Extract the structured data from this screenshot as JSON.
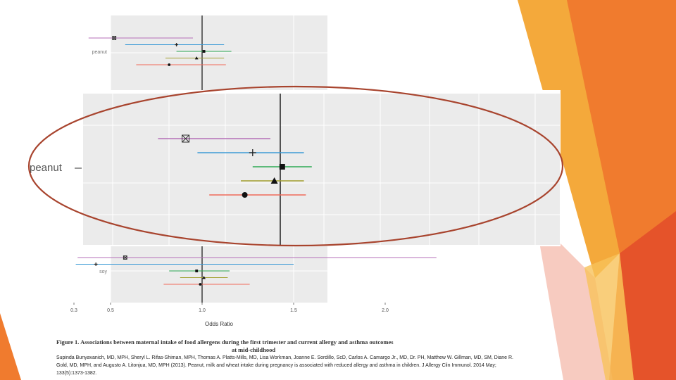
{
  "colors": {
    "accent_orange": "#F07B2E",
    "accent_gold": "#F4A93B",
    "accent_red": "#E5532A",
    "accent_salmon": "#F0A08C",
    "callout_ellipse": "#A8442E",
    "panel_bg": "#EBEBEB",
    "ref_line": "#111111"
  },
  "chart_data": [
    {
      "type": "scatter",
      "name": "full-forest-plot",
      "title": "Figure 1. Associations between maternal intake of food allergens during the first trimester and current allergy and asthma outcomes",
      "title_line2": "at mid-childhood",
      "xlabel": "Odds Ratio",
      "xlim": [
        0.3,
        2.3
      ],
      "x_ticks": [
        0.3,
        0.5,
        1.0,
        1.5,
        2.0
      ],
      "x_tick_labels": [
        "0.3",
        "0.5",
        "1.0",
        "1.5",
        "2.0"
      ],
      "reference_line": 1.0,
      "groups": [
        {
          "label": "peanut",
          "series": [
            {
              "color": "#B56FB8",
              "marker": "boxed-x",
              "estimate": 0.52,
              "ci": [
                0.38,
                0.95
              ]
            },
            {
              "color": "#3D9BD6",
              "marker": "plus",
              "estimate": 0.86,
              "ci": [
                0.58,
                1.12
              ]
            },
            {
              "color": "#2EAA55",
              "marker": "square",
              "estimate": 1.01,
              "ci": [
                0.86,
                1.16
              ]
            },
            {
              "color": "#A3A030",
              "marker": "triangle",
              "estimate": 0.97,
              "ci": [
                0.8,
                1.12
              ]
            },
            {
              "color": "#F06A5A",
              "marker": "circle",
              "estimate": 0.82,
              "ci": [
                0.64,
                1.13
              ]
            }
          ]
        },
        {
          "label": "soy",
          "series": [
            {
              "color": "#B56FB8",
              "marker": "boxed-x",
              "estimate": 0.58,
              "ci": [
                0.32,
                2.28
              ]
            },
            {
              "color": "#3D9BD6",
              "marker": "plus",
              "estimate": 0.42,
              "ci": [
                0.31,
                1.5
              ]
            },
            {
              "color": "#2EAA55",
              "marker": "square",
              "estimate": 0.97,
              "ci": [
                0.82,
                1.15
              ]
            },
            {
              "color": "#A3A030",
              "marker": "triangle",
              "estimate": 1.01,
              "ci": [
                0.88,
                1.14
              ]
            },
            {
              "color": "#F06A5A",
              "marker": "circle",
              "estimate": 0.99,
              "ci": [
                0.79,
                1.26
              ]
            }
          ]
        }
      ]
    },
    {
      "type": "scatter",
      "name": "peanut-zoom",
      "group_label": "peanut",
      "reference_line": 1.0,
      "series": [
        {
          "color": "#B56FB8",
          "marker": "boxed-x",
          "estimate": 0.52,
          "ci": [
            0.38,
            0.95
          ]
        },
        {
          "color": "#3D9BD6",
          "marker": "plus",
          "estimate": 0.86,
          "ci": [
            0.58,
            1.12
          ]
        },
        {
          "color": "#2EAA55",
          "marker": "square",
          "estimate": 1.01,
          "ci": [
            0.86,
            1.16
          ]
        },
        {
          "color": "#A3A030",
          "marker": "triangle",
          "estimate": 0.97,
          "ci": [
            0.8,
            1.12
          ]
        },
        {
          "color": "#F06A5A",
          "marker": "circle",
          "estimate": 0.82,
          "ci": [
            0.64,
            1.13
          ]
        }
      ]
    }
  ],
  "citation": "Supinda Bunyavanich, MD, MPH, Sheryl L. Rifas-Shiman, MPH, Thomas A. Platts-Mills, MD, Lisa Workman, Joanne E. Sordillo, ScD, Carlos A. Camargo Jr., MD, Dr. PH, Matthew W. Gillman, MD, SM, Diane R. Gold, MD, MPH, and Augusto A. Litonjua, MD, MPH (2013). Peanut, milk and wheat intake during pregnancy is associated with reduced allergy and asthma in children. J Allergy Clin Immunol. 2014 May; 133(5):1373-1382."
}
